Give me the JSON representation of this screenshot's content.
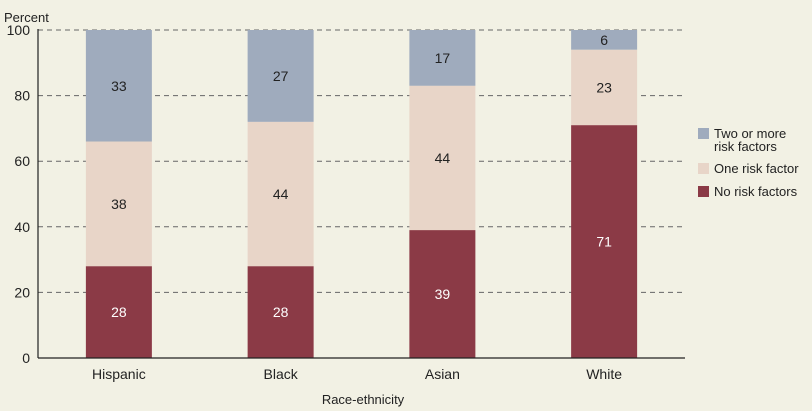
{
  "chart_data": {
    "type": "bar",
    "stacked": true,
    "categories": [
      "Hispanic",
      "Black",
      "Asian",
      "White"
    ],
    "series": [
      {
        "name": "No risk factors",
        "values": [
          28,
          28,
          39,
          71
        ],
        "color": "#8b3a46",
        "label_color": "#ffffff"
      },
      {
        "name": "One risk factor",
        "values": [
          38,
          44,
          44,
          23
        ],
        "color": "#e8d5c8",
        "label_color": "#222222"
      },
      {
        "name": "Two or more risk factors",
        "values": [
          33,
          27,
          17,
          6
        ],
        "color": "#9fabbd",
        "label_color": "#222222"
      }
    ],
    "legend_order": [
      2,
      1,
      0
    ],
    "legend_lines": [
      [
        "Two or more",
        "risk factors"
      ],
      [
        "One risk factor"
      ],
      [
        "No risk factors"
      ]
    ],
    "ylabel": "Percent",
    "xlabel": "Race-ethnicity",
    "ylim": [
      0,
      100
    ],
    "yticks": [
      0,
      20,
      40,
      60,
      80,
      100
    ],
    "grid": "horizontal-dashed",
    "legend_position": "right"
  }
}
